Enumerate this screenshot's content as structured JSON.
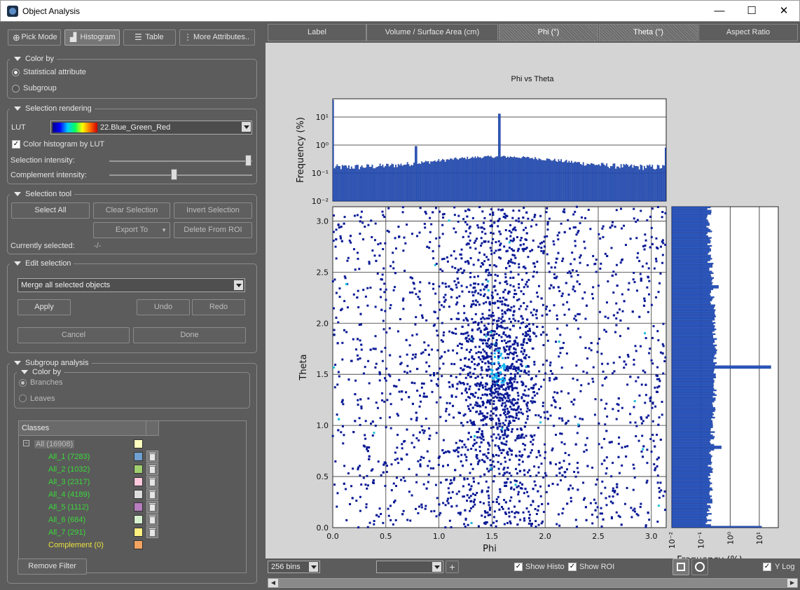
{
  "window": {
    "title": "Object Analysis",
    "controls": [
      "—",
      "☐",
      "✕"
    ]
  },
  "toolbar": {
    "pick_mode": "Pick Mode",
    "histogram": "Histogram",
    "table": "Table",
    "more_attributes": "More Attributes.."
  },
  "color_by": {
    "title": "Color by",
    "statistical": "Statistical attribute",
    "subgroup": "Subgroup"
  },
  "selection_rendering": {
    "title": "Selection rendering",
    "lut_label": "LUT",
    "lut_value": "22.Blue_Green_Red",
    "color_hist": "Color histogram by LUT",
    "sel_intensity": "Selection intensity:",
    "comp_intensity": "Complement intensity:",
    "sel_intensity_value": 1.0,
    "comp_intensity_value": 0.5
  },
  "selection_tool": {
    "title": "Selection tool",
    "select_all": "Select All",
    "clear_selection": "Clear Selection",
    "invert_selection": "Invert Selection",
    "export_to": "Export To",
    "delete_from_roi": "Delete From ROI",
    "currently_selected_label": "Currently selected:",
    "currently_selected_value": "-/-"
  },
  "edit_selection": {
    "title": "Edit selection",
    "operation": "Merge all selected objects",
    "apply": "Apply",
    "undo": "Undo",
    "redo": "Redo",
    "cancel": "Cancel",
    "done": "Done"
  },
  "subgroup_analysis": {
    "title": "Subgroup analysis",
    "color_by_title": "Color by",
    "branches": "Branches",
    "leaves": "Leaves",
    "classes_header": "Classes",
    "root": {
      "name": "All (16908)",
      "color": "#ffffc0"
    },
    "classes": [
      {
        "name": "All_1 (7283)",
        "color": "#6fa0d0"
      },
      {
        "name": "All_2 (1032)",
        "color": "#9fcf6f"
      },
      {
        "name": "All_3 (2317)",
        "color": "#ffc8dc"
      },
      {
        "name": "All_4 (4189)",
        "color": "#dcdcdc"
      },
      {
        "name": "All_5 (1112)",
        "color": "#b87cc0"
      },
      {
        "name": "All_6 (684)",
        "color": "#d7f0cf"
      },
      {
        "name": "All_7 (291)",
        "color": "#fff080"
      }
    ],
    "complement": {
      "name": "Complement (0)",
      "color": "#f2a460"
    },
    "remove_filter": "Remove Filter"
  },
  "tabs": [
    "Label",
    "Volume / Surface Area (cm)",
    "Phi (°)",
    "Theta (°)",
    "Aspect Ratio"
  ],
  "bottom_bar": {
    "bins": "256 bins",
    "show_histo": "Show Histo",
    "show_roi": "Show ROI",
    "y_log": "Y Log"
  },
  "chart_data": {
    "type": "scatter",
    "title": "Phi vs Theta",
    "xlabel": "Phi",
    "ylabel": "Theta",
    "xlim": [
      0.0,
      3.14
    ],
    "ylim": [
      0.0,
      3.14
    ],
    "x_ticks": [
      "0.0",
      "0.5",
      "1.0",
      "1.5",
      "2.0",
      "2.5",
      "3.0"
    ],
    "y_ticks": [
      "0.0",
      "0.5",
      "1.0",
      "1.5",
      "2.0",
      "2.5",
      "3.0"
    ],
    "top_histogram": {
      "ylabel": "Frequency (%)",
      "log_ticks": [
        "10⁻²",
        "10⁻¹",
        "10⁰",
        "10¹"
      ],
      "peaks": [
        {
          "x": 0.0,
          "freq": 40
        },
        {
          "x": 1.57,
          "freq": 13
        },
        {
          "x": 0.79,
          "freq": 0.9
        },
        {
          "x": 3.14,
          "freq": 0.8
        }
      ]
    },
    "right_histogram": {
      "xlabel": "Frequency (%)",
      "log_ticks": [
        "10⁻²",
        "10⁻¹",
        "10⁰",
        "10¹"
      ],
      "peaks": [
        {
          "y": 1.57,
          "freq": 25
        },
        {
          "y": 0.0,
          "freq": 12
        },
        {
          "y": 0.79,
          "freq": 0.5
        },
        {
          "y": 2.36,
          "freq": 0.4
        }
      ]
    },
    "point_count": 16908,
    "density_center": {
      "phi": 1.57,
      "theta": 1.57
    }
  }
}
